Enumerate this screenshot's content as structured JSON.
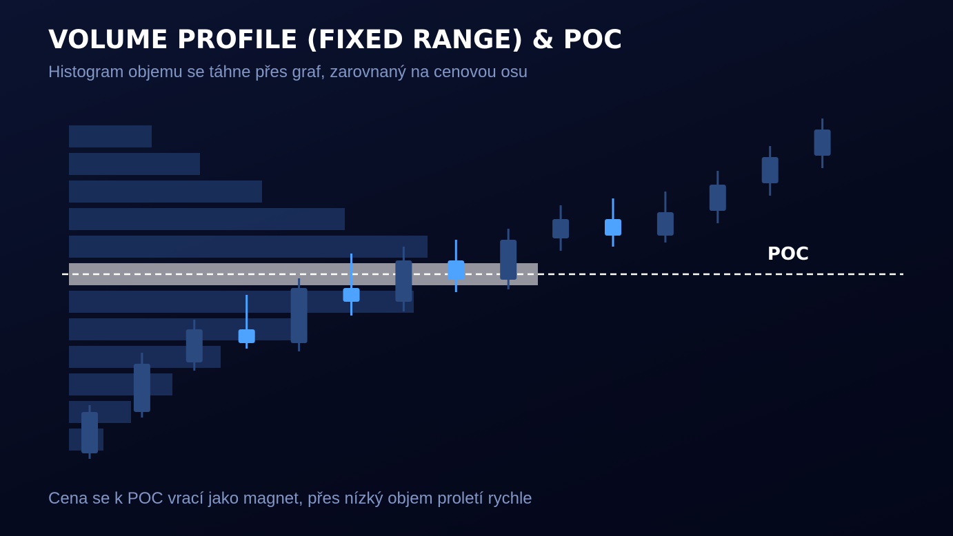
{
  "chart_data": {
    "type": "candlestick",
    "title": "VOLUME PROFILE (FIXED RANGE) & POC",
    "subtitle": "Histogram objemu se táhne přes graf, zarovnaný na cenovou osu",
    "footnote": "Cena se k POC vrací jako magnet, přes nízký objem proletí rychle",
    "ylim": [
      -0.5,
      12.5
    ],
    "xlim": [
      0,
      680
    ],
    "candles": {
      "open": [
        0.1,
        1.6,
        3.4,
        4.1,
        4.1,
        5.6,
        5.6,
        6.4,
        6.4,
        7.9,
        8.0,
        8.0,
        8.9,
        9.9,
        10.9
      ],
      "close": [
        1.6,
        3.35,
        4.6,
        4.6,
        6.1,
        6.1,
        7.1,
        7.1,
        7.85,
        8.6,
        8.6,
        8.85,
        9.85,
        10.85,
        11.85
      ],
      "high": [
        1.85,
        3.75,
        4.95,
        5.85,
        6.45,
        7.35,
        7.6,
        7.85,
        8.25,
        9.1,
        9.35,
        9.6,
        10.35,
        11.25,
        12.25
      ],
      "low": [
        -0.1,
        1.4,
        3.1,
        3.9,
        3.8,
        5.1,
        5.25,
        5.95,
        6.05,
        7.45,
        7.6,
        7.75,
        8.45,
        9.45,
        10.45
      ],
      "colors": [
        "#2b4a80",
        "#2b4a80",
        "#2b4a80",
        "#4da3ff",
        "#2b4a80",
        "#4da3ff",
        "#2b4a80",
        "#4da3ff",
        "#2b4a80",
        "#2b4a80",
        "#4da3ff",
        "#2b4a80",
        "#2b4a80",
        "#2b4a80",
        "#2b4a80"
      ]
    },
    "volume_profile": {
      "levels": [
        11.6,
        10.6,
        9.6,
        8.6,
        7.6,
        6.6,
        5.6,
        4.6,
        3.6,
        2.6,
        1.6,
        0.6
      ],
      "volumes": [
        120,
        190,
        280,
        400,
        520,
        680,
        500,
        330,
        220,
        150,
        90,
        50
      ],
      "color": "#1b3260",
      "poc_color": "#a3a3ab"
    },
    "poc": {
      "label": "POC",
      "value": 6.6,
      "color": "#ffffff"
    }
  }
}
